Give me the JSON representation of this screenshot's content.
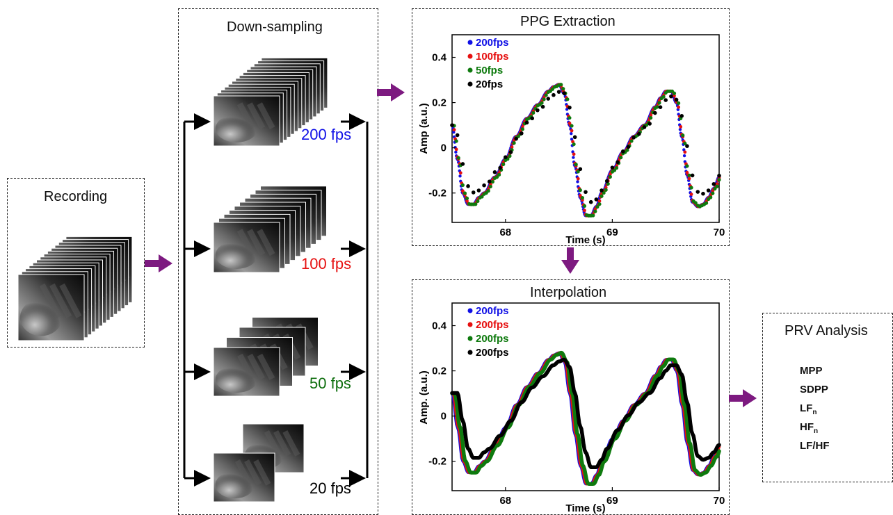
{
  "recording": {
    "title": "Recording"
  },
  "downsampling": {
    "title": "Down-sampling",
    "rows": [
      {
        "label": "200 fps",
        "color": "#1010e6"
      },
      {
        "label": "100 fps",
        "color": "#e61010"
      },
      {
        "label": "50 fps",
        "color": "#0e6e0e"
      },
      {
        "label": "20 fps",
        "color": "#000000"
      }
    ]
  },
  "ppg": {
    "title": "PPG Extraction"
  },
  "interp": {
    "title": "Interpolation"
  },
  "prv": {
    "title": "PRV Analysis",
    "metrics": [
      {
        "text": "MPP",
        "sub": ""
      },
      {
        "text": "SDPP",
        "sub": ""
      },
      {
        "text": "LF",
        "sub": "n"
      },
      {
        "text": "HF",
        "sub": "n"
      },
      {
        "text": "LF/HF",
        "sub": ""
      }
    ]
  },
  "colors": {
    "arrow": "#7d1a80",
    "blue": "#1010e6",
    "red": "#e61010",
    "green": "#0e7a0e",
    "black": "#000000"
  },
  "chart_data": [
    {
      "type": "scatter",
      "title": "PPG Extraction",
      "xlabel": "Time (s)",
      "ylabel": "Amp (a.u.)",
      "xlim": [
        67.5,
        70
      ],
      "ylim": [
        -0.33,
        0.5
      ],
      "xticks": [
        "68",
        "69",
        "70"
      ],
      "yticks": [
        "0.4",
        "0.2",
        "0",
        "-0.2"
      ],
      "legend_position": "top-left",
      "series": [
        {
          "name": "200fps",
          "color": "#1010e6",
          "sample_rate": 200
        },
        {
          "name": "100fps",
          "color": "#e61010",
          "sample_rate": 100
        },
        {
          "name": "50fps",
          "color": "#0e7a0e",
          "sample_rate": 50
        },
        {
          "name": "20fps",
          "color": "#000000",
          "sample_rate": 20
        }
      ],
      "waveform_points": {
        "x": [
          67.5,
          67.55,
          67.6,
          67.65,
          67.7,
          67.75,
          67.8,
          67.9,
          68.0,
          68.1,
          68.2,
          68.3,
          68.4,
          68.45,
          68.5,
          68.55,
          68.6,
          68.65,
          68.7,
          68.75,
          68.8,
          68.85,
          68.9,
          69.0,
          69.1,
          69.2,
          69.3,
          69.4,
          69.45,
          69.5,
          69.55,
          69.6,
          69.65,
          69.7,
          69.75,
          69.8,
          69.85,
          69.9,
          69.95,
          70.0
        ],
        "y": [
          0.1,
          -0.05,
          -0.2,
          -0.25,
          -0.25,
          -0.22,
          -0.2,
          -0.13,
          -0.05,
          0.05,
          0.13,
          0.19,
          0.25,
          0.27,
          0.28,
          0.24,
          0.1,
          -0.08,
          -0.22,
          -0.3,
          -0.3,
          -0.26,
          -0.2,
          -0.1,
          -0.02,
          0.05,
          0.1,
          0.18,
          0.22,
          0.25,
          0.25,
          0.2,
          0.05,
          -0.12,
          -0.24,
          -0.26,
          -0.25,
          -0.22,
          -0.18,
          -0.13
        ]
      }
    },
    {
      "type": "line",
      "title": "Interpolation",
      "xlabel": "Time (s)",
      "ylabel": "Amp. (a.u.)",
      "xlim": [
        67.5,
        70
      ],
      "ylim": [
        -0.33,
        0.5
      ],
      "xticks": [
        "68",
        "69",
        "70"
      ],
      "yticks": [
        "0.4",
        "0.2",
        "0",
        "-0.2"
      ],
      "legend_position": "top-left",
      "series": [
        {
          "name": "200fps",
          "color": "#1010e6"
        },
        {
          "name": "200fps",
          "color": "#e61010"
        },
        {
          "name": "200fps",
          "color": "#0e7a0e"
        },
        {
          "name": "200fps",
          "color": "#000000"
        }
      ],
      "waveform_points": {
        "x": [
          67.5,
          67.55,
          67.6,
          67.65,
          67.7,
          67.75,
          67.8,
          67.9,
          68.0,
          68.1,
          68.2,
          68.3,
          68.4,
          68.45,
          68.5,
          68.55,
          68.6,
          68.65,
          68.7,
          68.75,
          68.8,
          68.85,
          68.9,
          69.0,
          69.1,
          69.2,
          69.3,
          69.4,
          69.45,
          69.5,
          69.55,
          69.6,
          69.65,
          69.7,
          69.75,
          69.8,
          69.85,
          69.9,
          69.95,
          70.0
        ],
        "y": [
          0.1,
          -0.05,
          -0.2,
          -0.25,
          -0.25,
          -0.22,
          -0.2,
          -0.13,
          -0.05,
          0.05,
          0.13,
          0.19,
          0.25,
          0.27,
          0.28,
          0.24,
          0.1,
          -0.08,
          -0.22,
          -0.3,
          -0.3,
          -0.26,
          -0.2,
          -0.1,
          -0.02,
          0.05,
          0.1,
          0.18,
          0.22,
          0.25,
          0.25,
          0.2,
          0.05,
          -0.12,
          -0.24,
          -0.26,
          -0.25,
          -0.22,
          -0.18,
          -0.13
        ]
      }
    }
  ]
}
